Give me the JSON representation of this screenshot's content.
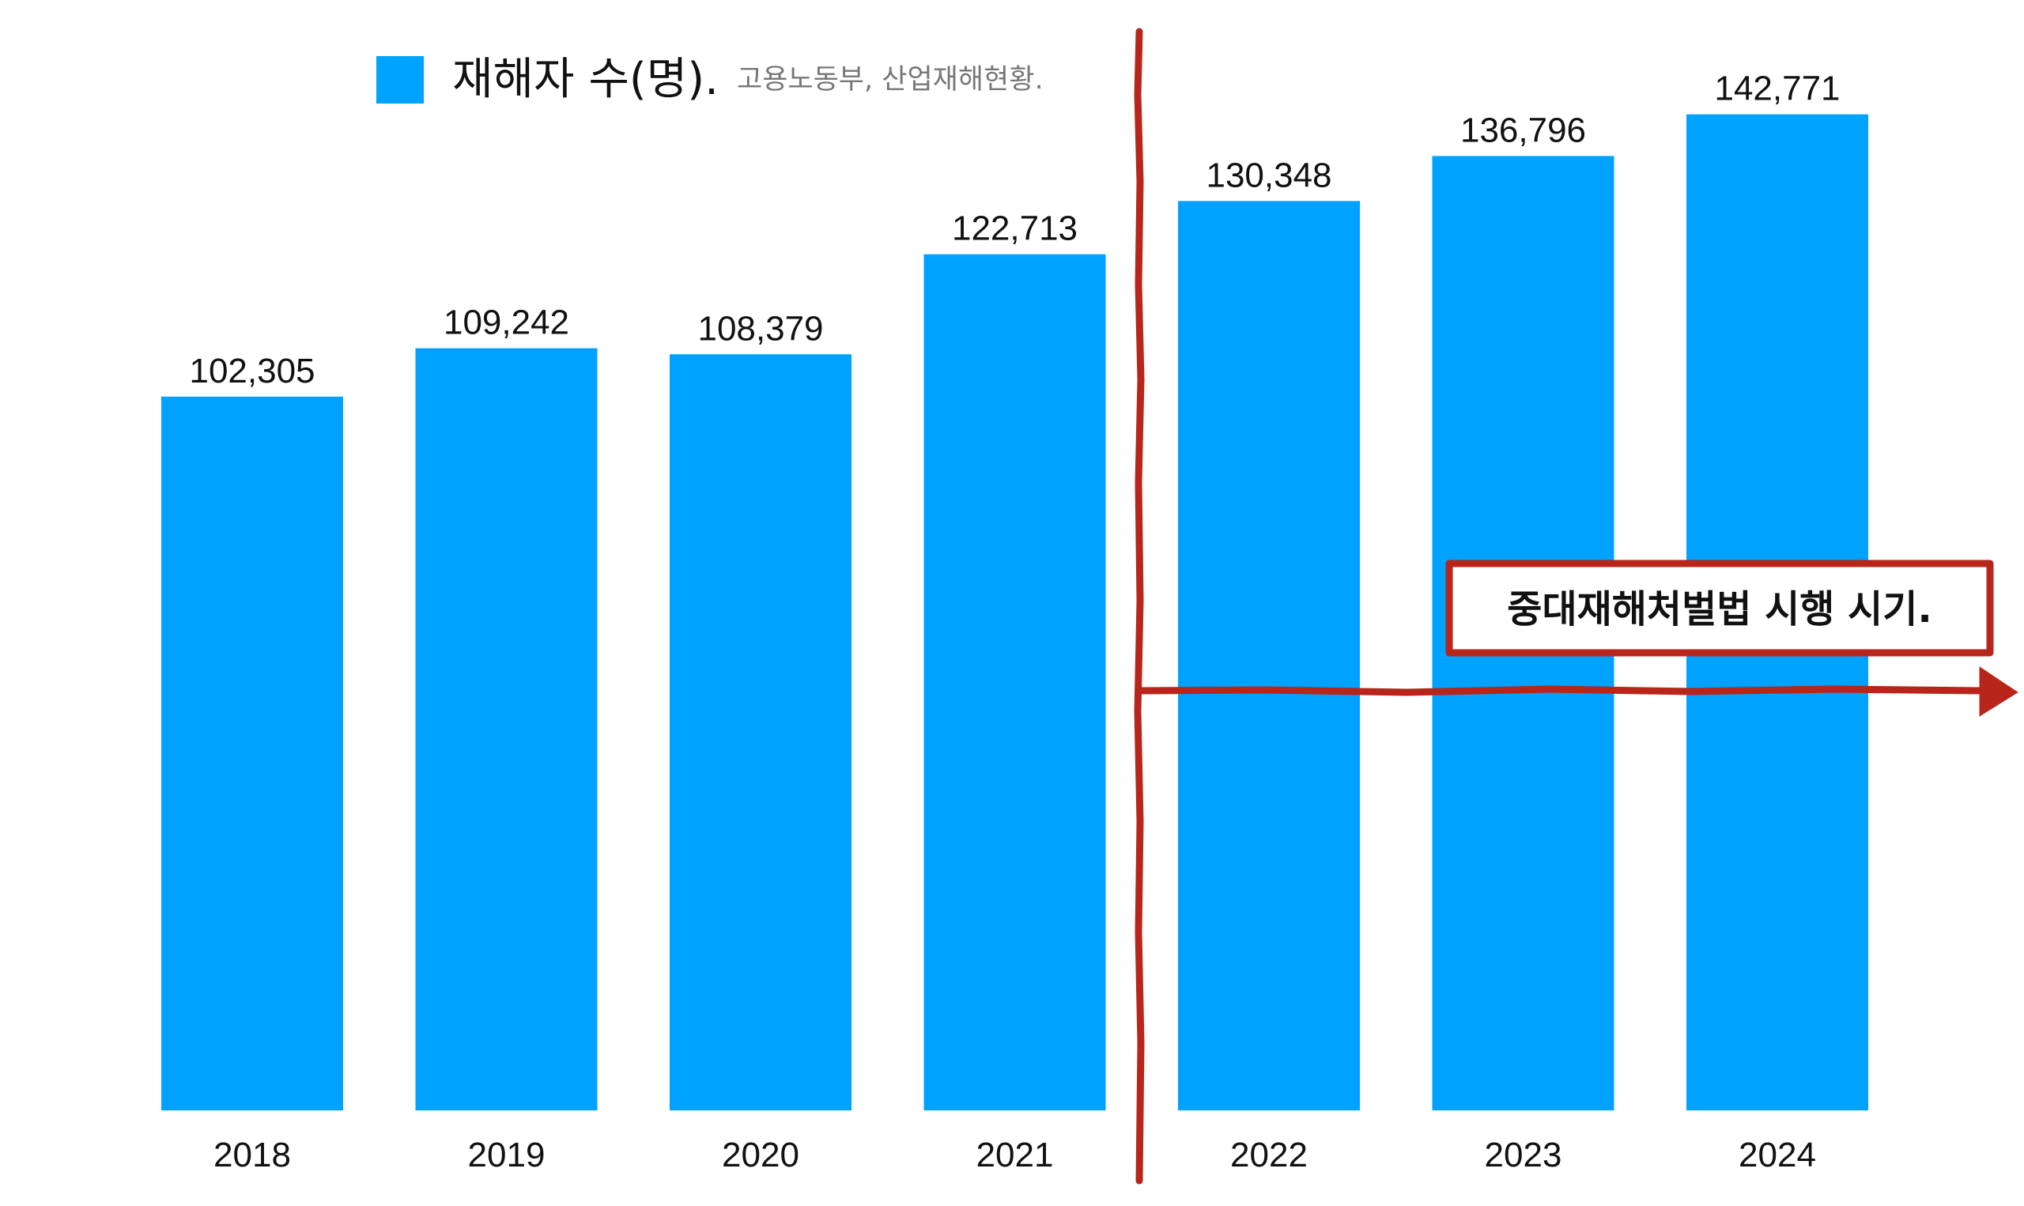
{
  "chart_data": {
    "type": "bar",
    "categories": [
      "2018",
      "2019",
      "2020",
      "2021",
      "2022",
      "2023",
      "2024"
    ],
    "series": [
      {
        "name": "재해자 수(명).",
        "values": [
          102305,
          109242,
          108379,
          122713,
          130348,
          136796,
          142771
        ],
        "labels": [
          "102,305",
          "109,242",
          "108,379",
          "122,713",
          "130,348",
          "136,796",
          "142,771"
        ]
      }
    ],
    "legend": {
      "title": "재해자 수(명).",
      "source": "고용노동부, 산업재해현황.",
      "placement": "top-left"
    },
    "annotation": {
      "text": "중대재해처벌법 시행 시기.",
      "divider_between": [
        "2021",
        "2022"
      ]
    },
    "ylim": [
      0,
      145000
    ],
    "grid": false,
    "colors": {
      "bar": "#00A2FF",
      "annotation": "#B8251B"
    }
  }
}
